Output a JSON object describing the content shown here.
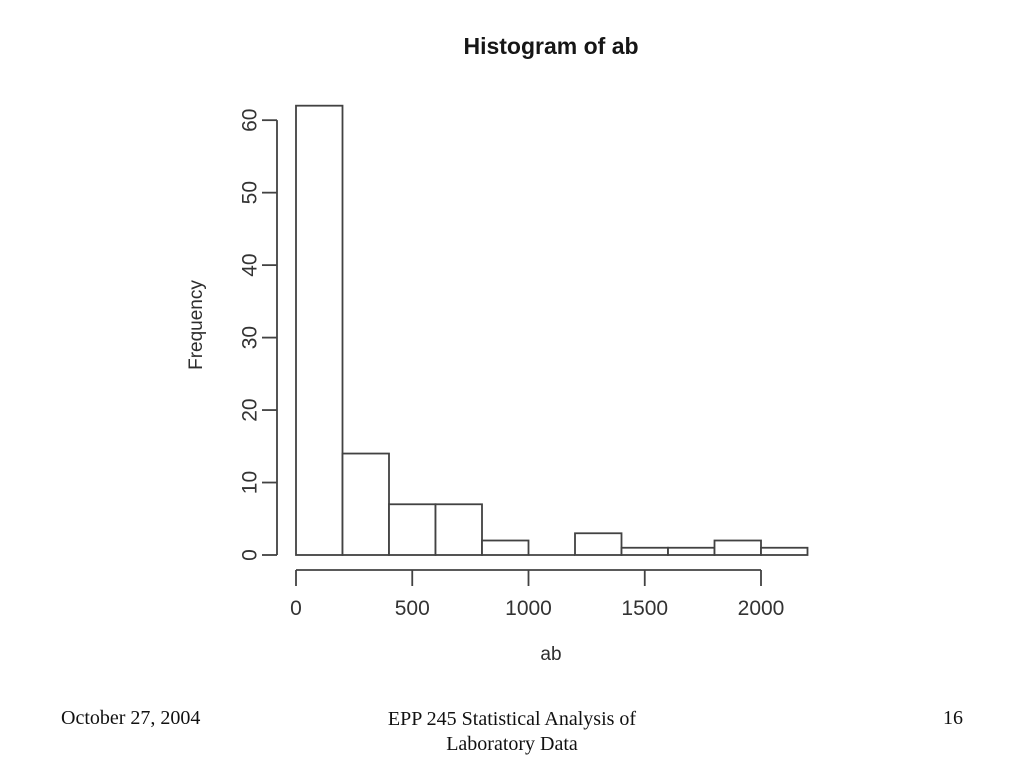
{
  "slide": {
    "background": "#ffffff",
    "footer": {
      "date": "October 27, 2004",
      "course_line1": "EPP 245 Statistical Analysis of",
      "course_line2": "Laboratory Data",
      "page_number": "16"
    }
  },
  "chart_data": {
    "type": "bar",
    "subtype": "histogram",
    "title": "Histogram of ab",
    "xlabel": "ab",
    "ylabel": "Frequency",
    "bin_edges": [
      0,
      200,
      400,
      600,
      800,
      1000,
      1200,
      1400,
      1600,
      1800,
      2000,
      2200
    ],
    "counts": [
      62,
      14,
      7,
      7,
      2,
      0,
      3,
      1,
      1,
      2,
      1
    ],
    "x_ticks": [
      0,
      500,
      1000,
      1500,
      2000
    ],
    "y_ticks": [
      0,
      10,
      20,
      30,
      40,
      50,
      60
    ],
    "xlim": [
      0,
      2200
    ],
    "ylim": [
      0,
      62
    ],
    "grid": false,
    "legend": "none",
    "bar_fill": "#ffffff",
    "bar_stroke": "#424242",
    "axis_color": "#424242",
    "tick_label_color": "#333333"
  }
}
